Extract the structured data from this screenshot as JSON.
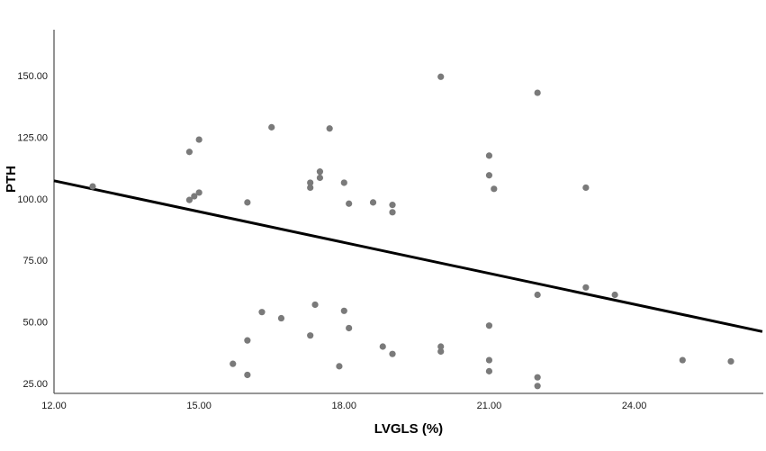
{
  "chart_data": {
    "type": "scatter",
    "title": "",
    "xlabel": "LVGLS (%)",
    "ylabel": "PTH",
    "x_ticks": [
      "12.00",
      "15.00",
      "18.00",
      "21.00",
      "24.00"
    ],
    "x_tick_values": [
      12,
      15,
      18,
      21,
      24
    ],
    "y_ticks": [
      "25.00",
      "50.00",
      "75.00",
      "100.00",
      "125.00",
      "150.00"
    ],
    "y_tick_values": [
      25,
      50,
      75,
      100,
      125,
      150
    ],
    "xlim": [
      12,
      26.67
    ],
    "ylim": [
      21,
      168.6
    ],
    "grid": false,
    "legend": false,
    "point_color": "#7a7a7a",
    "fit_line_color": "#000000",
    "axis_color": "#595959",
    "fit_line": {
      "x1": 12.0,
      "y1": 107.3,
      "x2": 26.65,
      "y2": 46.1
    },
    "points": [
      [
        12.8,
        105
      ],
      [
        14.8,
        119
      ],
      [
        15.0,
        124
      ],
      [
        14.8,
        99.5
      ],
      [
        14.9,
        101
      ],
      [
        15.0,
        102.5
      ],
      [
        16.0,
        98.5
      ],
      [
        16.5,
        129
      ],
      [
        17.7,
        128.5
      ],
      [
        17.5,
        111
      ],
      [
        17.5,
        108.5
      ],
      [
        17.3,
        106.5
      ],
      [
        17.3,
        104.5
      ],
      [
        18.0,
        106.5
      ],
      [
        18.1,
        98
      ],
      [
        18.6,
        98.5
      ],
      [
        19.0,
        97.5
      ],
      [
        19.0,
        94.5
      ],
      [
        20.0,
        149.5
      ],
      [
        21.0,
        117.5
      ],
      [
        21.0,
        109.5
      ],
      [
        21.1,
        104
      ],
      [
        22.0,
        143
      ],
      [
        23.0,
        104.5
      ],
      [
        16.3,
        54
      ],
      [
        16.7,
        51.5
      ],
      [
        16.0,
        42.5
      ],
      [
        15.7,
        33
      ],
      [
        16.0,
        28.5
      ],
      [
        17.4,
        57
      ],
      [
        18.0,
        54.5
      ],
      [
        18.1,
        47.5
      ],
      [
        17.3,
        44.5
      ],
      [
        17.9,
        32
      ],
      [
        18.8,
        40
      ],
      [
        19.0,
        37
      ],
      [
        20.0,
        40
      ],
      [
        20.0,
        38
      ],
      [
        21.0,
        48.5
      ],
      [
        21.0,
        34.5
      ],
      [
        21.0,
        30
      ],
      [
        22.0,
        61
      ],
      [
        22.0,
        27.5
      ],
      [
        22.0,
        24
      ],
      [
        23.0,
        64
      ],
      [
        23.6,
        61
      ],
      [
        25.0,
        34.5
      ],
      [
        26.0,
        34
      ]
    ]
  }
}
